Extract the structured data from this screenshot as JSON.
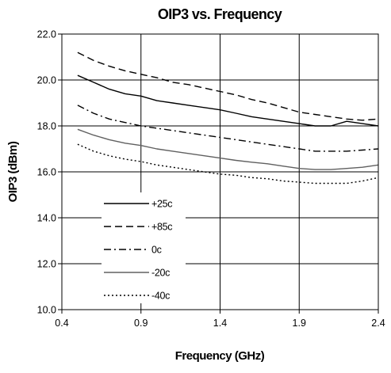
{
  "chart_data": {
    "type": "line",
    "title": "OIP3 vs. Frequency",
    "xlabel": "Frequency (GHz)",
    "ylabel": "OIP3 (dBm)",
    "xlim": [
      0.4,
      2.4
    ],
    "ylim": [
      10.0,
      22.0
    ],
    "x_ticks": [
      "0.4",
      "0.9",
      "1.4",
      "1.9",
      "2.4"
    ],
    "y_ticks": [
      "10.0",
      "12.0",
      "14.0",
      "16.0",
      "18.0",
      "20.0",
      "22.0"
    ],
    "grid": true,
    "legend_position": "lower-left",
    "series": [
      {
        "name": "+25c",
        "style": "solid",
        "color": "#000000",
        "x": [
          0.5,
          0.6,
          0.7,
          0.8,
          0.9,
          1.0,
          1.1,
          1.2,
          1.3,
          1.4,
          1.5,
          1.6,
          1.7,
          1.8,
          1.9,
          2.0,
          2.1,
          2.2,
          2.3,
          2.4
        ],
        "y": [
          20.2,
          19.9,
          19.6,
          19.4,
          19.3,
          19.1,
          19.0,
          18.9,
          18.8,
          18.7,
          18.55,
          18.4,
          18.3,
          18.2,
          18.1,
          18.0,
          18.0,
          18.2,
          18.1,
          18.0
        ]
      },
      {
        "name": "+85c",
        "style": "dashed",
        "color": "#000000",
        "x": [
          0.5,
          0.6,
          0.7,
          0.8,
          0.9,
          1.0,
          1.1,
          1.2,
          1.3,
          1.4,
          1.5,
          1.6,
          1.7,
          1.8,
          1.9,
          2.0,
          2.1,
          2.2,
          2.3,
          2.4
        ],
        "y": [
          21.2,
          20.85,
          20.6,
          20.4,
          20.25,
          20.1,
          19.9,
          19.8,
          19.65,
          19.5,
          19.35,
          19.15,
          19.0,
          18.8,
          18.6,
          18.5,
          18.4,
          18.3,
          18.25,
          18.3
        ]
      },
      {
        "name": "0c",
        "style": "dashdot",
        "color": "#000000",
        "x": [
          0.5,
          0.6,
          0.7,
          0.8,
          0.9,
          1.0,
          1.1,
          1.2,
          1.3,
          1.4,
          1.5,
          1.6,
          1.7,
          1.8,
          1.9,
          2.0,
          2.1,
          2.2,
          2.3,
          2.4
        ],
        "y": [
          18.9,
          18.55,
          18.3,
          18.15,
          18.0,
          17.9,
          17.8,
          17.7,
          17.6,
          17.5,
          17.4,
          17.3,
          17.2,
          17.1,
          17.0,
          16.9,
          16.9,
          16.9,
          16.95,
          17.0
        ]
      },
      {
        "name": "-20c",
        "style": "solid",
        "color": "#606060",
        "x": [
          0.5,
          0.6,
          0.7,
          0.8,
          0.9,
          1.0,
          1.1,
          1.2,
          1.3,
          1.4,
          1.5,
          1.6,
          1.7,
          1.8,
          1.9,
          2.0,
          2.1,
          2.2,
          2.3,
          2.4
        ],
        "y": [
          17.85,
          17.6,
          17.4,
          17.25,
          17.15,
          17.0,
          16.9,
          16.8,
          16.7,
          16.6,
          16.5,
          16.42,
          16.35,
          16.25,
          16.15,
          16.1,
          16.1,
          16.15,
          16.2,
          16.3
        ]
      },
      {
        "name": "-40c",
        "style": "dotted",
        "color": "#000000",
        "x": [
          0.5,
          0.6,
          0.7,
          0.8,
          0.9,
          1.0,
          1.1,
          1.2,
          1.3,
          1.4,
          1.5,
          1.6,
          1.7,
          1.8,
          1.9,
          2.0,
          2.1,
          2.2,
          2.3,
          2.4
        ],
        "y": [
          17.2,
          16.9,
          16.7,
          16.55,
          16.45,
          16.3,
          16.2,
          16.1,
          16.0,
          15.9,
          15.85,
          15.75,
          15.7,
          15.6,
          15.55,
          15.5,
          15.5,
          15.5,
          15.6,
          15.75
        ]
      }
    ]
  }
}
